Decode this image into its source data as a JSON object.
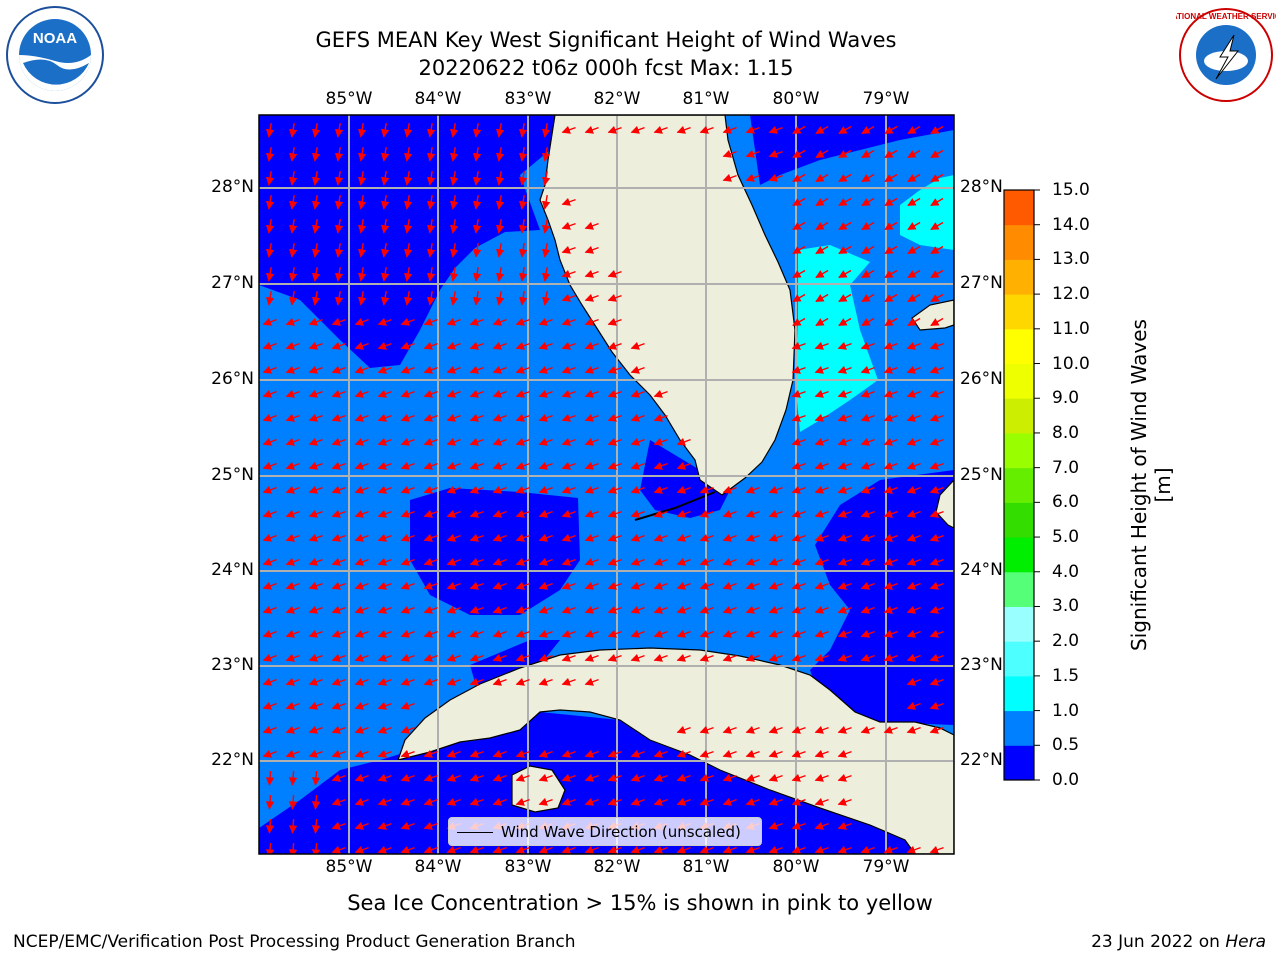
{
  "title": {
    "line1": "GEFS MEAN Key West Significant Height of Wind Waves",
    "line2": "20220622 t06z 000h fcst   Max: 1.15"
  },
  "map": {
    "lon_labels": [
      "85°W",
      "84°W",
      "83°W",
      "82°W",
      "81°W",
      "80°W",
      "79°W"
    ],
    "lat_labels": [
      "28°N",
      "27°N",
      "26°N",
      "25°N",
      "24°N",
      "23°N",
      "22°N"
    ],
    "legend_label": "Wind Wave Direction (unscaled)",
    "arrow_color": "#ff0000",
    "land_color": "#eeeedd",
    "level_colors": {
      "0.0-0.5": "#0000ff",
      "0.5-1.0": "#0080ff",
      "1.0-1.5": "#00ffff"
    }
  },
  "colorbar": {
    "label": "Significant Height of Wind Waves [m]",
    "ticks": [
      "15.0",
      "14.0",
      "13.0",
      "12.0",
      "11.0",
      "10.0",
      "9.0",
      "8.0",
      "7.0",
      "6.0",
      "5.0",
      "4.0",
      "3.0",
      "2.0",
      "1.5",
      "1.0",
      "0.5",
      "0.0"
    ],
    "colors": [
      "#0000ff",
      "#0080ff",
      "#00ffff",
      "#4dffff",
      "#99ffff",
      "#55ff77",
      "#00ee00",
      "#33dd00",
      "#66ee00",
      "#99ff00",
      "#ccee00",
      "#eeff00",
      "#ffff00",
      "#ffd700",
      "#ffb000",
      "#ff8c00",
      "#ff5a00",
      "#ff2000",
      "#ff0000"
    ]
  },
  "footer": {
    "note": "Sea Ice Concentration > 15% is shown in pink to yellow",
    "credit_left": "NCEP/EMC/Verification Post Processing Product Generation Branch",
    "date_text": "23 Jun 2022 on ",
    "machine": "Hera"
  },
  "logos": {
    "noaa_text": "NOAA",
    "nws_text": "NATIONAL WEATHER SERVICE"
  }
}
